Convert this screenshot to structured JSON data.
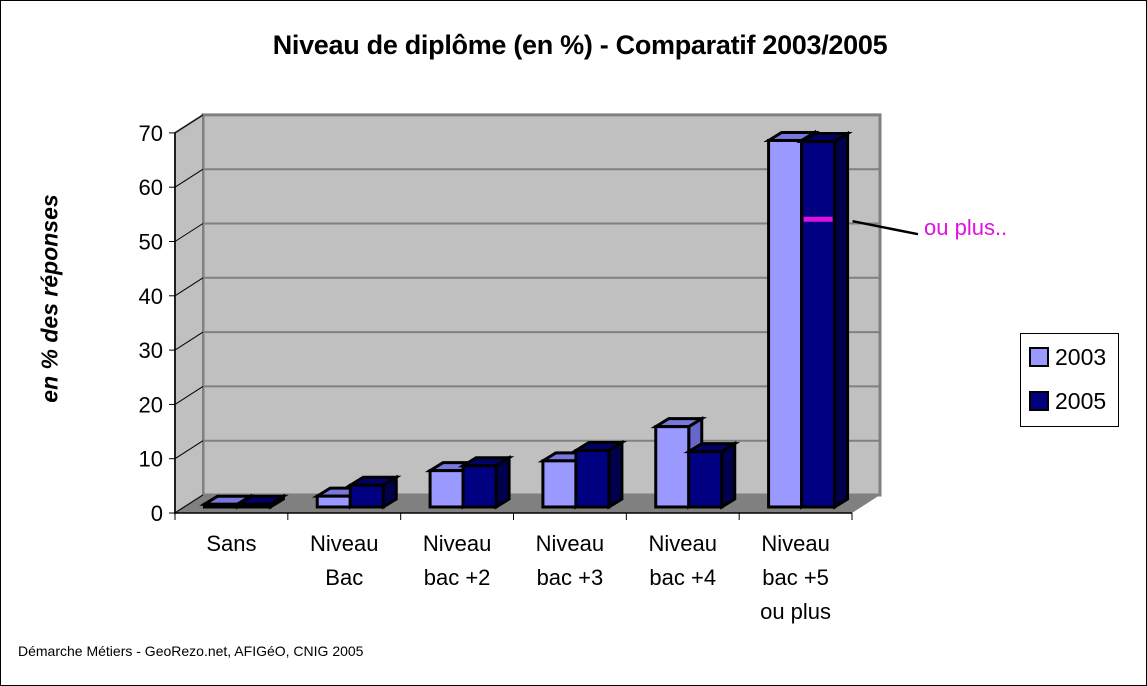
{
  "chart_data": {
    "type": "bar",
    "style": "3d-clustered-column",
    "title": "Niveau de diplôme (en %) - Comparatif 2003/2005",
    "xlabel": "",
    "ylabel": "en % des réponses",
    "ylim": [
      0,
      70
    ],
    "yticks": [
      0,
      10,
      20,
      30,
      40,
      50,
      60,
      70
    ],
    "grid": true,
    "legend_position": "right",
    "categories": [
      "Sans",
      "Niveau Bac",
      "Niveau bac +2",
      "Niveau bac +3",
      "Niveau bac +4",
      "Niveau bac +5 ou plus"
    ],
    "category_lines": [
      [
        "Sans"
      ],
      [
        "Niveau",
        "Bac"
      ],
      [
        "Niveau",
        "bac +2"
      ],
      [
        "Niveau",
        "bac +3"
      ],
      [
        "Niveau",
        "bac +4"
      ],
      [
        "Niveau",
        "bac +5",
        "ou plus"
      ]
    ],
    "series": [
      {
        "name": "2003",
        "color": "#9999ff",
        "values": [
          0.5,
          2,
          6.7,
          8.5,
          14.8,
          67.5
        ]
      },
      {
        "name": "2005",
        "color": "#000080",
        "values": [
          0.5,
          4,
          7.6,
          10.4,
          10.2,
          67.3
        ]
      }
    ],
    "annotations": [
      {
        "text": "ou plus..",
        "color": "#e010e0",
        "target": "Niveau bac +5 ou plus / 2005",
        "at_value": 53
      }
    ]
  },
  "title": "Niveau de diplôme (en %) - Comparatif 2003/2005",
  "ylabel": "en % des réponses",
  "legend": {
    "items": [
      {
        "label": "2003",
        "color": "#9999ff"
      },
      {
        "label": "2005",
        "color": "#000080"
      }
    ]
  },
  "annotation": "ou plus..",
  "source": "Démarche Métiers - GeoRezo.net, AFIGéO, CNIG 2005",
  "colors": {
    "wall": "#c0c0c0",
    "floor": "#808080",
    "grid": "#808080",
    "accent": "#e010e0"
  }
}
